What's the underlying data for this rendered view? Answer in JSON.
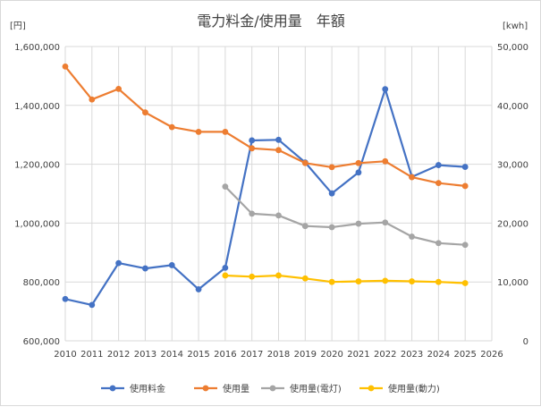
{
  "chart_data": {
    "type": "line",
    "title": "電力料金/使用量　年額",
    "left_unit": "[円]",
    "right_unit": "[kwh]",
    "x_ticks": [
      "2010",
      "2011",
      "2012",
      "2013",
      "2014",
      "2015",
      "2016",
      "2017",
      "2018",
      "2019",
      "2020",
      "2021",
      "2022",
      "2023",
      "2024",
      "2025",
      "2026"
    ],
    "left_ticks": [
      "600,000",
      "800,000",
      "1,000,000",
      "1,200,000",
      "1,400,000",
      "1,600,000"
    ],
    "right_ticks": [
      "0",
      "10,000",
      "20,000",
      "30,000",
      "40,000",
      "50,000"
    ],
    "ylim_left": [
      600000,
      1600000
    ],
    "ylim_right": [
      0,
      50000
    ],
    "xlim": [
      2010,
      2026
    ],
    "grid": true,
    "legend_position": "bottom",
    "series": [
      {
        "name": "使用料金",
        "axis": "left",
        "color": "#4472c4",
        "x": [
          2010,
          2011,
          2012,
          2013,
          2014,
          2015,
          2016,
          2017,
          2018,
          2019,
          2020,
          2021,
          2022,
          2023,
          2024,
          2025
        ],
        "values": [
          742000,
          722000,
          864000,
          846000,
          857000,
          775000,
          848000,
          1281000,
          1283000,
          1206000,
          1101000,
          1172000,
          1455000,
          1157000,
          1197000,
          1191000
        ]
      },
      {
        "name": "使用量",
        "axis": "right",
        "color": "#ed7d31",
        "x": [
          2010,
          2011,
          2012,
          2013,
          2014,
          2015,
          2016,
          2017,
          2018,
          2019,
          2020,
          2021,
          2022,
          2023,
          2024,
          2025
        ],
        "values": [
          46600,
          41000,
          42800,
          38800,
          36300,
          35500,
          35500,
          32700,
          32400,
          30200,
          29500,
          30200,
          30500,
          27800,
          26800,
          26300
        ]
      },
      {
        "name": "使用量(電灯)",
        "axis": "right",
        "color": "#a5a5a5",
        "x": [
          2016,
          2017,
          2018,
          2019,
          2020,
          2021,
          2022,
          2023,
          2024,
          2025
        ],
        "values": [
          26200,
          21600,
          21300,
          19500,
          19300,
          19900,
          20100,
          17700,
          16600,
          16300
        ]
      },
      {
        "name": "使用量(動力)",
        "axis": "right",
        "color": "#ffc000",
        "x": [
          2016,
          2017,
          2018,
          2019,
          2020,
          2021,
          2022,
          2023,
          2024,
          2025
        ],
        "values": [
          11100,
          10900,
          11100,
          10600,
          10000,
          10100,
          10200,
          10100,
          10000,
          9800
        ]
      }
    ]
  }
}
